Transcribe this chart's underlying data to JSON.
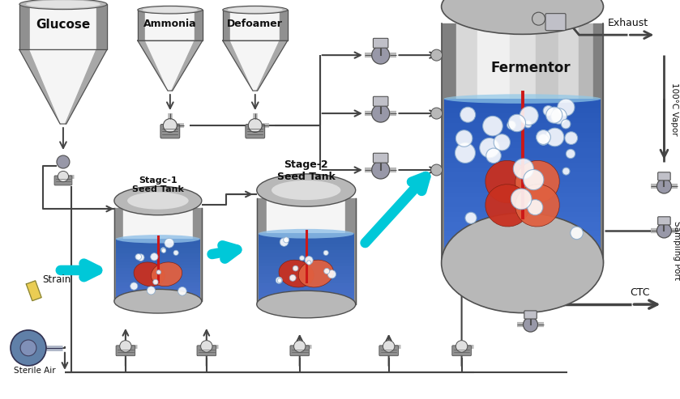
{
  "bg_color": "#ffffff",
  "labels": {
    "glucose": "Glucose",
    "ammonia": "Ammonia",
    "defoamer": "Defoamer",
    "fermentor": "Fermentor",
    "stage1": "Stagc-1\nSeed Tank",
    "stage2": "Stage-2\nSeed Tank",
    "strain": "Strain",
    "sterile_air": "Sterile Air",
    "exhaust": "Exhaust",
    "vapor": "100°C Vapor",
    "sampling": "Sampling Port",
    "ctc": "CTC"
  },
  "colors": {
    "steel_light": "#e0e0e0",
    "steel_mid": "#b8b8b8",
    "steel_dark": "#909090",
    "steel_darker": "#505050",
    "steel_shine": "#f5f5f5",
    "tank_blue_top": "#6090d0",
    "tank_blue_mid": "#3060b0",
    "tank_blue_dark": "#1840a0",
    "impeller_red": "#c83020",
    "impeller_orange": "#e06040",
    "bubble_white": "#ffffff",
    "pipe_dark": "#444444",
    "pipe_mid": "#888888",
    "motor_dark": "#707070",
    "motor_mid": "#909090",
    "text_dark": "#111111",
    "arrow_cyan": "#00c8d8",
    "valve_body": "#9898a8",
    "valve_act": "#c0c0c8"
  }
}
